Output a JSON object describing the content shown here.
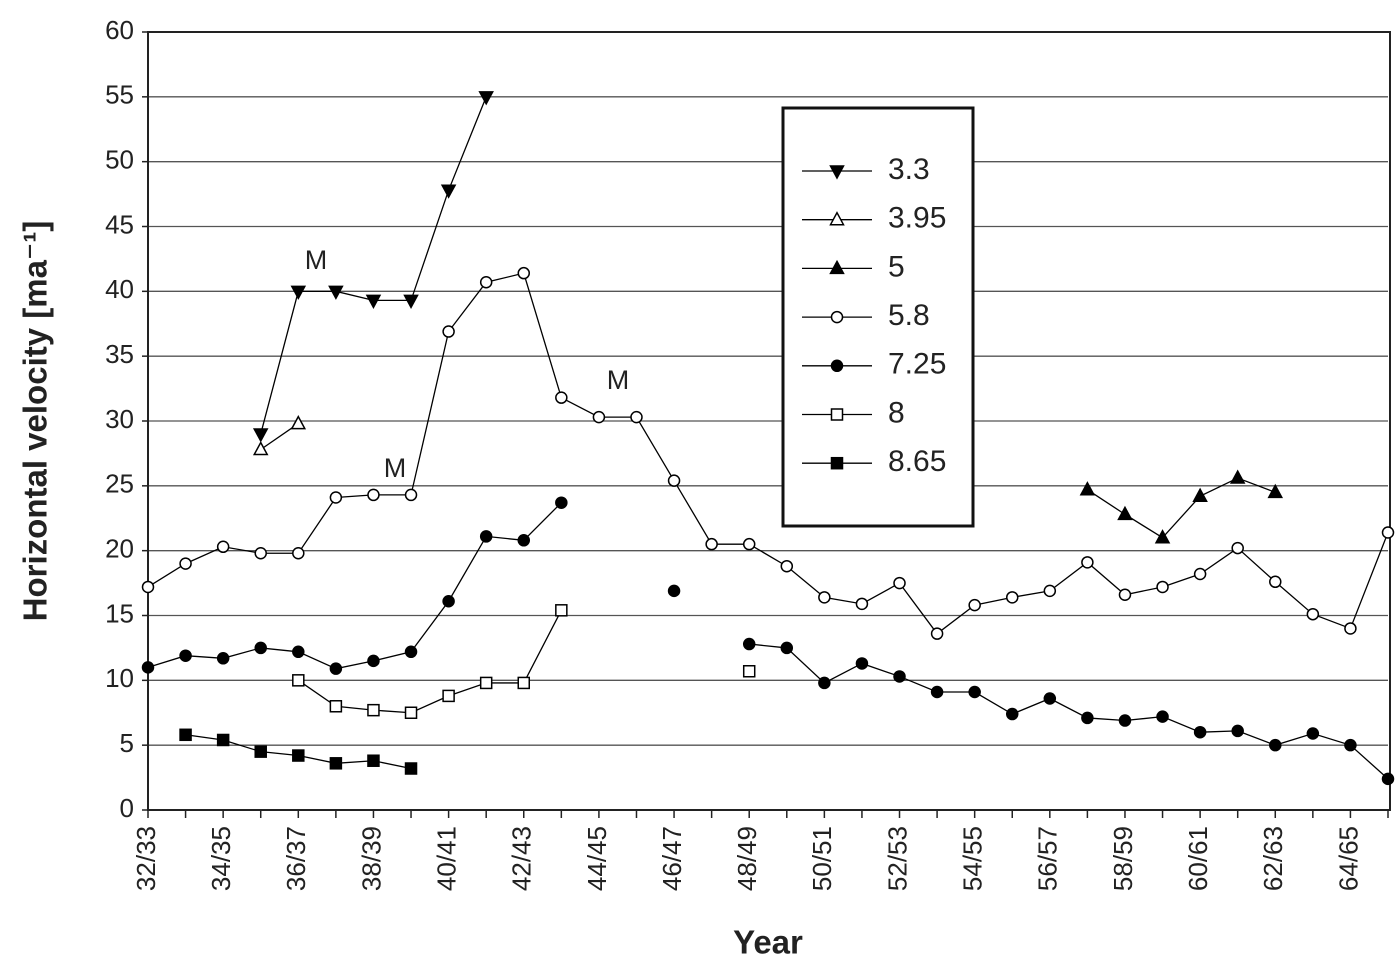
{
  "chart_data": {
    "type": "line",
    "x_label": "Year",
    "y_label": "Horizontal velocity [ma⁻¹]",
    "categories": [
      "32/33",
      null,
      "34/35",
      null,
      "36/37",
      null,
      "38/39",
      null,
      "40/41",
      null,
      "42/43",
      null,
      "44/45",
      null,
      "46/47",
      null,
      "48/49",
      null,
      "50/51",
      null,
      "52/53",
      null,
      "54/55",
      null,
      "56/57",
      null,
      "58/59",
      null,
      "60/61",
      null,
      "62/63",
      null,
      "64/65",
      null
    ],
    "ylim": [
      0,
      60
    ],
    "yticks": [
      0,
      5,
      10,
      15,
      20,
      25,
      30,
      35,
      40,
      45,
      50,
      55,
      60
    ],
    "grid": true,
    "legend": "upper-center",
    "series": [
      {
        "name": "3.3",
        "color": "#000000",
        "marker": "triangle-down",
        "filled": true,
        "values": [
          null,
          null,
          null,
          29,
          40,
          40,
          39.3,
          39.3,
          47.8,
          55,
          null,
          null,
          null,
          null,
          null,
          null,
          null,
          null,
          null,
          null,
          null,
          null,
          null,
          null,
          null,
          null,
          null,
          null,
          null,
          null,
          null,
          null,
          null,
          null
        ]
      },
      {
        "name": "3.95",
        "color": "#000000",
        "marker": "triangle-up",
        "filled": false,
        "values": [
          null,
          null,
          null,
          27.8,
          29.8,
          null,
          null,
          null,
          null,
          null,
          null,
          null,
          null,
          null,
          null,
          null,
          null,
          null,
          null,
          null,
          null,
          null,
          null,
          null,
          null,
          null,
          null,
          null,
          null,
          null,
          null,
          null,
          null,
          null
        ]
      },
      {
        "name": "5",
        "color": "#000000",
        "marker": "triangle-up",
        "filled": true,
        "values": [
          null,
          null,
          null,
          null,
          null,
          null,
          null,
          null,
          null,
          null,
          null,
          null,
          null,
          null,
          null,
          null,
          null,
          null,
          null,
          null,
          null,
          null,
          null,
          null,
          null,
          24.7,
          22.8,
          21,
          24.2,
          25.6,
          24.5,
          null,
          null,
          null
        ]
      },
      {
        "name": "5.8",
        "color": "#000000",
        "marker": "circle",
        "filled": false,
        "values": [
          17.2,
          19,
          20.3,
          19.8,
          19.8,
          24.1,
          24.3,
          24.3,
          36.9,
          40.7,
          41.4,
          31.8,
          30.3,
          30.3,
          25.4,
          20.5,
          20.5,
          18.8,
          16.4,
          15.9,
          17.5,
          13.6,
          15.8,
          16.4,
          16.9,
          19.1,
          16.6,
          17.2,
          18.2,
          20.2,
          17.6,
          15.1,
          14,
          21.4
        ]
      },
      {
        "name": "7.25",
        "color": "#000000",
        "marker": "circle",
        "filled": true,
        "values": [
          11,
          11.9,
          11.7,
          12.5,
          12.2,
          10.9,
          11.5,
          12.2,
          16.1,
          21.1,
          20.8,
          23.7,
          null,
          null,
          16.9,
          null,
          12.8,
          12.5,
          9.8,
          11.3,
          10.3,
          9.1,
          9.1,
          7.4,
          8.6,
          7.1,
          6.9,
          7.2,
          6,
          6.1,
          5,
          5.9,
          5,
          2.4
        ]
      },
      {
        "name": "8",
        "color": "#000000",
        "marker": "square",
        "filled": false,
        "values": [
          null,
          null,
          null,
          null,
          10,
          8,
          7.7,
          7.5,
          8.8,
          9.8,
          9.8,
          15.4,
          null,
          null,
          null,
          null,
          10.7,
          null,
          null,
          null,
          null,
          null,
          null,
          null,
          null,
          null,
          null,
          null,
          null,
          null,
          null,
          null,
          null,
          null
        ]
      },
      {
        "name": "8.65",
        "color": "#000000",
        "marker": "square",
        "filled": true,
        "values": [
          null,
          5.8,
          5.4,
          4.5,
          4.2,
          3.6,
          3.8,
          3.2,
          null,
          null,
          null,
          null,
          null,
          null,
          null,
          null,
          null,
          null,
          null,
          null,
          null,
          null,
          null,
          null,
          null,
          null,
          null,
          null,
          null,
          null,
          null,
          null,
          null,
          null
        ]
      }
    ],
    "annotations": [
      "M",
      "M",
      "M"
    ]
  }
}
